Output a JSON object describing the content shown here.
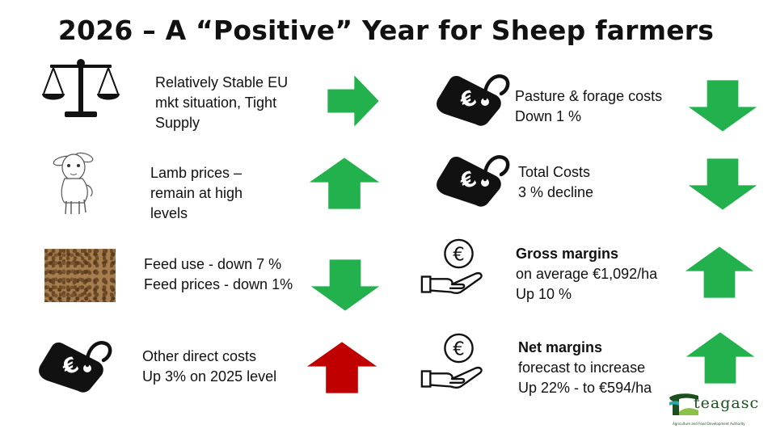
{
  "title": "2026 – A “Positive” Year for Sheep farmers",
  "left_items": [
    {
      "icon": "scales-icon",
      "lines": [
        "Relatively Stable EU",
        "mkt situation, Tight",
        "Supply"
      ],
      "trend": "right",
      "arrow_color": "#22b14c"
    },
    {
      "icon": "lamb-icon",
      "lines": [
        "Lamb prices –",
        "remain at high",
        "levels"
      ],
      "trend": "up",
      "arrow_color": "#22b14c"
    },
    {
      "icon": "feed-pellets-image",
      "lines": [
        "Feed use - down 7 %",
        "Feed prices - down 1%"
      ],
      "trend": "down",
      "arrow_color": "#22b14c"
    },
    {
      "icon": "euro-tag-icon",
      "lines": [
        "Other direct costs",
        "Up 3% on 2025 level"
      ],
      "trend": "up",
      "arrow_color": "#c00000"
    }
  ],
  "right_items": [
    {
      "icon": "euro-tag-icon",
      "heading": "",
      "lines": [
        "Pasture & forage costs",
        "Down 1 %"
      ],
      "trend": "down",
      "arrow_color": "#22b14c"
    },
    {
      "icon": "euro-tag-icon",
      "heading": "",
      "lines": [
        "Total Costs",
        "3 % decline"
      ],
      "trend": "down",
      "arrow_color": "#22b14c"
    },
    {
      "icon": "euro-hand-icon",
      "heading": "Gross margins",
      "lines": [
        "on average €1,092/ha",
        "Up 10 %"
      ],
      "trend": "up",
      "arrow_color": "#22b14c"
    },
    {
      "icon": "euro-hand-icon",
      "heading": "Net margins",
      "lines": [
        "forecast to increase",
        "Up 22% - to €594/ha"
      ],
      "trend": "up",
      "arrow_color": "#22b14c"
    }
  ],
  "logo": {
    "name": "teagasc",
    "tagline": "Agriculture and Food Development Authority"
  }
}
